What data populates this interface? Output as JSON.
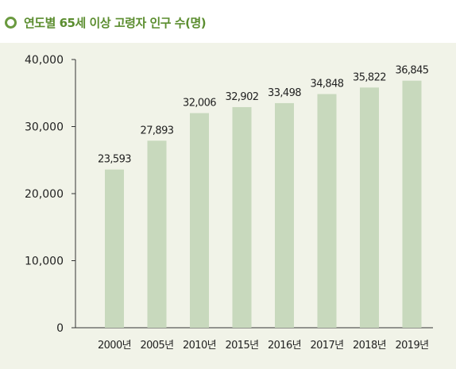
{
  "header": {
    "title": "연도별 65세 이상 고령자 인구 수(명)"
  },
  "colors": {
    "bar": "#c8d9bd",
    "accent": "#5b8d2f",
    "panel": "#f1f3e8",
    "axis": "#333333",
    "text": "#222222"
  },
  "chart_data": {
    "type": "bar",
    "title": "연도별 65세 이상 고령자 인구 수(명)",
    "categories": [
      "2000년",
      "2005년",
      "2010년",
      "2015년",
      "2016년",
      "2017년",
      "2018년",
      "2019년"
    ],
    "values": [
      23593,
      27893,
      32006,
      32902,
      33498,
      34848,
      35822,
      36845
    ],
    "value_labels": [
      "23,593",
      "27,893",
      "32,006",
      "32,902",
      "33,498",
      "34,848",
      "35,822",
      "36,845"
    ],
    "y_ticks": [
      0,
      10000,
      20000,
      30000,
      40000
    ],
    "y_tick_labels": [
      "0",
      "10,000",
      "20,000",
      "30,000",
      "40,000"
    ],
    "ylim": [
      0,
      40000
    ],
    "xlabel": "",
    "ylabel": "",
    "grid": false,
    "legend": "none"
  }
}
